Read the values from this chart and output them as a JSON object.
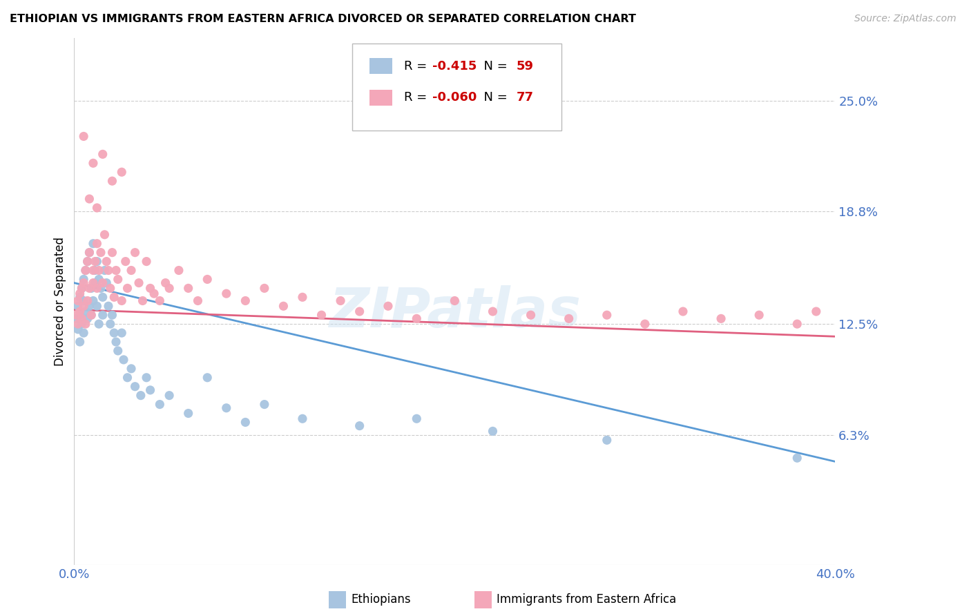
{
  "title": "ETHIOPIAN VS IMMIGRANTS FROM EASTERN AFRICA DIVORCED OR SEPARATED CORRELATION CHART",
  "source": "Source: ZipAtlas.com",
  "ylabel": "Divorced or Separated",
  "ytick_labels": [
    "25.0%",
    "18.8%",
    "12.5%",
    "6.3%"
  ],
  "ytick_values": [
    0.25,
    0.188,
    0.125,
    0.063
  ],
  "xmin": 0.0,
  "xmax": 0.4,
  "ymin": -0.01,
  "ymax": 0.285,
  "watermark": "ZIPatlas",
  "legend_entry1": {
    "label": "Ethiopians",
    "R": "-0.415",
    "N": "59",
    "color": "#a8c4e0"
  },
  "legend_entry2": {
    "label": "Immigrants from Eastern Africa",
    "R": "-0.060",
    "N": "77",
    "color": "#f4a7b9"
  },
  "line1_color": "#5b9bd5",
  "line2_color": "#e06080",
  "dot1_color": "#a8c4e0",
  "dot2_color": "#f4a7b9",
  "ethiopians_x": [
    0.001,
    0.002,
    0.002,
    0.003,
    0.003,
    0.003,
    0.004,
    0.004,
    0.005,
    0.005,
    0.005,
    0.006,
    0.006,
    0.007,
    0.007,
    0.008,
    0.008,
    0.009,
    0.009,
    0.01,
    0.01,
    0.011,
    0.011,
    0.012,
    0.012,
    0.013,
    0.013,
    0.014,
    0.015,
    0.015,
    0.016,
    0.017,
    0.018,
    0.019,
    0.02,
    0.021,
    0.022,
    0.023,
    0.025,
    0.026,
    0.028,
    0.03,
    0.032,
    0.035,
    0.038,
    0.04,
    0.045,
    0.05,
    0.06,
    0.07,
    0.08,
    0.09,
    0.1,
    0.12,
    0.15,
    0.18,
    0.22,
    0.28,
    0.38
  ],
  "ethiopians_y": [
    0.128,
    0.122,
    0.135,
    0.115,
    0.13,
    0.14,
    0.125,
    0.145,
    0.12,
    0.138,
    0.15,
    0.132,
    0.155,
    0.128,
    0.16,
    0.135,
    0.165,
    0.13,
    0.145,
    0.138,
    0.17,
    0.155,
    0.148,
    0.16,
    0.135,
    0.15,
    0.125,
    0.145,
    0.14,
    0.13,
    0.155,
    0.148,
    0.135,
    0.125,
    0.13,
    0.12,
    0.115,
    0.11,
    0.12,
    0.105,
    0.095,
    0.1,
    0.09,
    0.085,
    0.095,
    0.088,
    0.08,
    0.085,
    0.075,
    0.095,
    0.078,
    0.07,
    0.08,
    0.072,
    0.068,
    0.072,
    0.065,
    0.06,
    0.05
  ],
  "eastern_africa_x": [
    0.001,
    0.002,
    0.002,
    0.003,
    0.003,
    0.004,
    0.004,
    0.005,
    0.005,
    0.006,
    0.006,
    0.007,
    0.007,
    0.008,
    0.008,
    0.009,
    0.01,
    0.01,
    0.011,
    0.012,
    0.012,
    0.013,
    0.014,
    0.015,
    0.016,
    0.017,
    0.018,
    0.019,
    0.02,
    0.021,
    0.022,
    0.023,
    0.025,
    0.027,
    0.028,
    0.03,
    0.032,
    0.034,
    0.036,
    0.038,
    0.04,
    0.042,
    0.045,
    0.048,
    0.05,
    0.055,
    0.06,
    0.065,
    0.07,
    0.08,
    0.09,
    0.1,
    0.11,
    0.12,
    0.13,
    0.14,
    0.15,
    0.165,
    0.18,
    0.2,
    0.22,
    0.24,
    0.26,
    0.28,
    0.3,
    0.32,
    0.34,
    0.36,
    0.38,
    0.39,
    0.005,
    0.008,
    0.01,
    0.012,
    0.015,
    0.02,
    0.025
  ],
  "eastern_africa_y": [
    0.13,
    0.125,
    0.138,
    0.132,
    0.142,
    0.128,
    0.145,
    0.135,
    0.148,
    0.125,
    0.155,
    0.138,
    0.16,
    0.145,
    0.165,
    0.13,
    0.155,
    0.148,
    0.16,
    0.145,
    0.17,
    0.155,
    0.165,
    0.148,
    0.175,
    0.16,
    0.155,
    0.145,
    0.165,
    0.14,
    0.155,
    0.15,
    0.138,
    0.16,
    0.145,
    0.155,
    0.165,
    0.148,
    0.138,
    0.16,
    0.145,
    0.142,
    0.138,
    0.148,
    0.145,
    0.155,
    0.145,
    0.138,
    0.15,
    0.142,
    0.138,
    0.145,
    0.135,
    0.14,
    0.13,
    0.138,
    0.132,
    0.135,
    0.128,
    0.138,
    0.132,
    0.13,
    0.128,
    0.13,
    0.125,
    0.132,
    0.128,
    0.13,
    0.125,
    0.132,
    0.23,
    0.195,
    0.215,
    0.19,
    0.22,
    0.205,
    0.21
  ],
  "eth_line_x0": 0.0,
  "eth_line_x1": 0.4,
  "eth_line_y0": 0.148,
  "eth_line_y1": 0.048,
  "ea_line_x0": 0.0,
  "ea_line_x1": 0.4,
  "ea_line_y0": 0.133,
  "ea_line_y1": 0.118
}
